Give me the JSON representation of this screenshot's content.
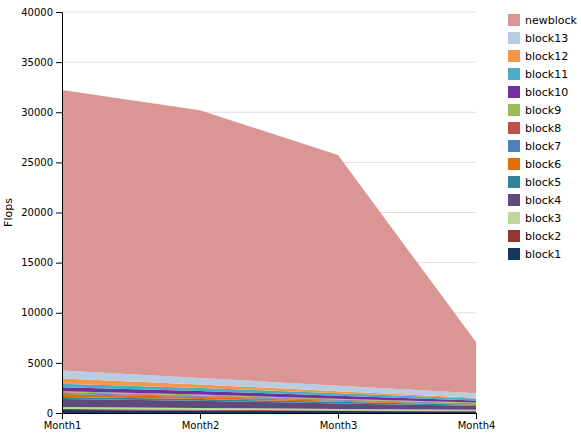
{
  "chart_data": {
    "type": "area",
    "stacked": true,
    "categories": [
      "Month1",
      "Month2",
      "Month3",
      "Month4"
    ],
    "series": [
      {
        "name": "block1",
        "color": "#17375e",
        "values": [
          300,
          250,
          200,
          150
        ]
      },
      {
        "name": "block2",
        "color": "#953735",
        "values": [
          100,
          80,
          60,
          50
        ]
      },
      {
        "name": "block3",
        "color": "#c3d69b",
        "values": [
          200,
          180,
          150,
          120
        ]
      },
      {
        "name": "block4",
        "color": "#604a7b",
        "values": [
          800,
          700,
          550,
          400
        ]
      },
      {
        "name": "block5",
        "color": "#31849b",
        "values": [
          200,
          180,
          150,
          100
        ]
      },
      {
        "name": "block6",
        "color": "#e36c09",
        "values": [
          300,
          200,
          100,
          60
        ]
      },
      {
        "name": "block7",
        "color": "#4f81bd",
        "values": [
          100,
          90,
          80,
          60
        ]
      },
      {
        "name": "block8",
        "color": "#c0504d",
        "values": [
          80,
          70,
          60,
          40
        ]
      },
      {
        "name": "block9",
        "color": "#9bbb59",
        "values": [
          100,
          90,
          80,
          60
        ]
      },
      {
        "name": "block10",
        "color": "#7030a0",
        "values": [
          400,
          350,
          300,
          200
        ]
      },
      {
        "name": "block11",
        "color": "#4bacc6",
        "values": [
          350,
          300,
          250,
          200
        ]
      },
      {
        "name": "block12",
        "color": "#f79646",
        "values": [
          500,
          350,
          200,
          80
        ]
      },
      {
        "name": "block13",
        "color": "#b8cce4",
        "values": [
          800,
          650,
          550,
          450
        ]
      },
      {
        "name": "newblock",
        "color": "#d99694",
        "values": [
          28000,
          26700,
          23000,
          5100
        ]
      }
    ],
    "ylabel": "Flops",
    "ylim": [
      0,
      40000
    ],
    "yticks": [
      0,
      5000,
      10000,
      15000,
      20000,
      25000,
      30000,
      35000,
      40000
    ],
    "grid": true,
    "legend": "right"
  }
}
